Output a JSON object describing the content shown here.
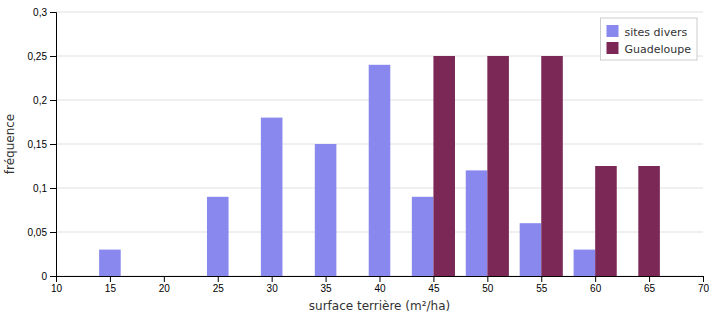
{
  "chart_data": {
    "type": "bar",
    "xlabel": "surface terrière (m²/ha)",
    "ylabel": "fréquence",
    "x": [
      15,
      25,
      30,
      35,
      40,
      45,
      50,
      55,
      60,
      65
    ],
    "series": [
      {
        "name": "sites divers",
        "color": "#8888EE",
        "values": [
          0.03,
          0.09,
          0.18,
          0.15,
          0.24,
          0.09,
          0.12,
          0.06,
          0.03,
          null
        ]
      },
      {
        "name": "Guadeloupe",
        "color": "#7B2857",
        "values": [
          null,
          null,
          null,
          null,
          null,
          0.25,
          0.25,
          0.25,
          0.125,
          0.125
        ]
      }
    ],
    "xlim": [
      10,
      70
    ],
    "xticks": [
      10,
      15,
      20,
      25,
      30,
      35,
      40,
      45,
      50,
      55,
      60,
      65,
      70
    ],
    "ylim": [
      0,
      0.3
    ],
    "yticks": [
      0,
      {
        "value": 0.05,
        "label": "0,05"
      },
      {
        "value": 0.1,
        "label": "0,1"
      },
      {
        "value": 0.15,
        "label": "0,15"
      },
      {
        "value": 0.2,
        "label": "0,2"
      },
      {
        "value": 0.25,
        "label": "0,25"
      },
      {
        "value": 0.3,
        "label": "0,3"
      }
    ],
    "grid": true,
    "legend": "upper-right"
  }
}
